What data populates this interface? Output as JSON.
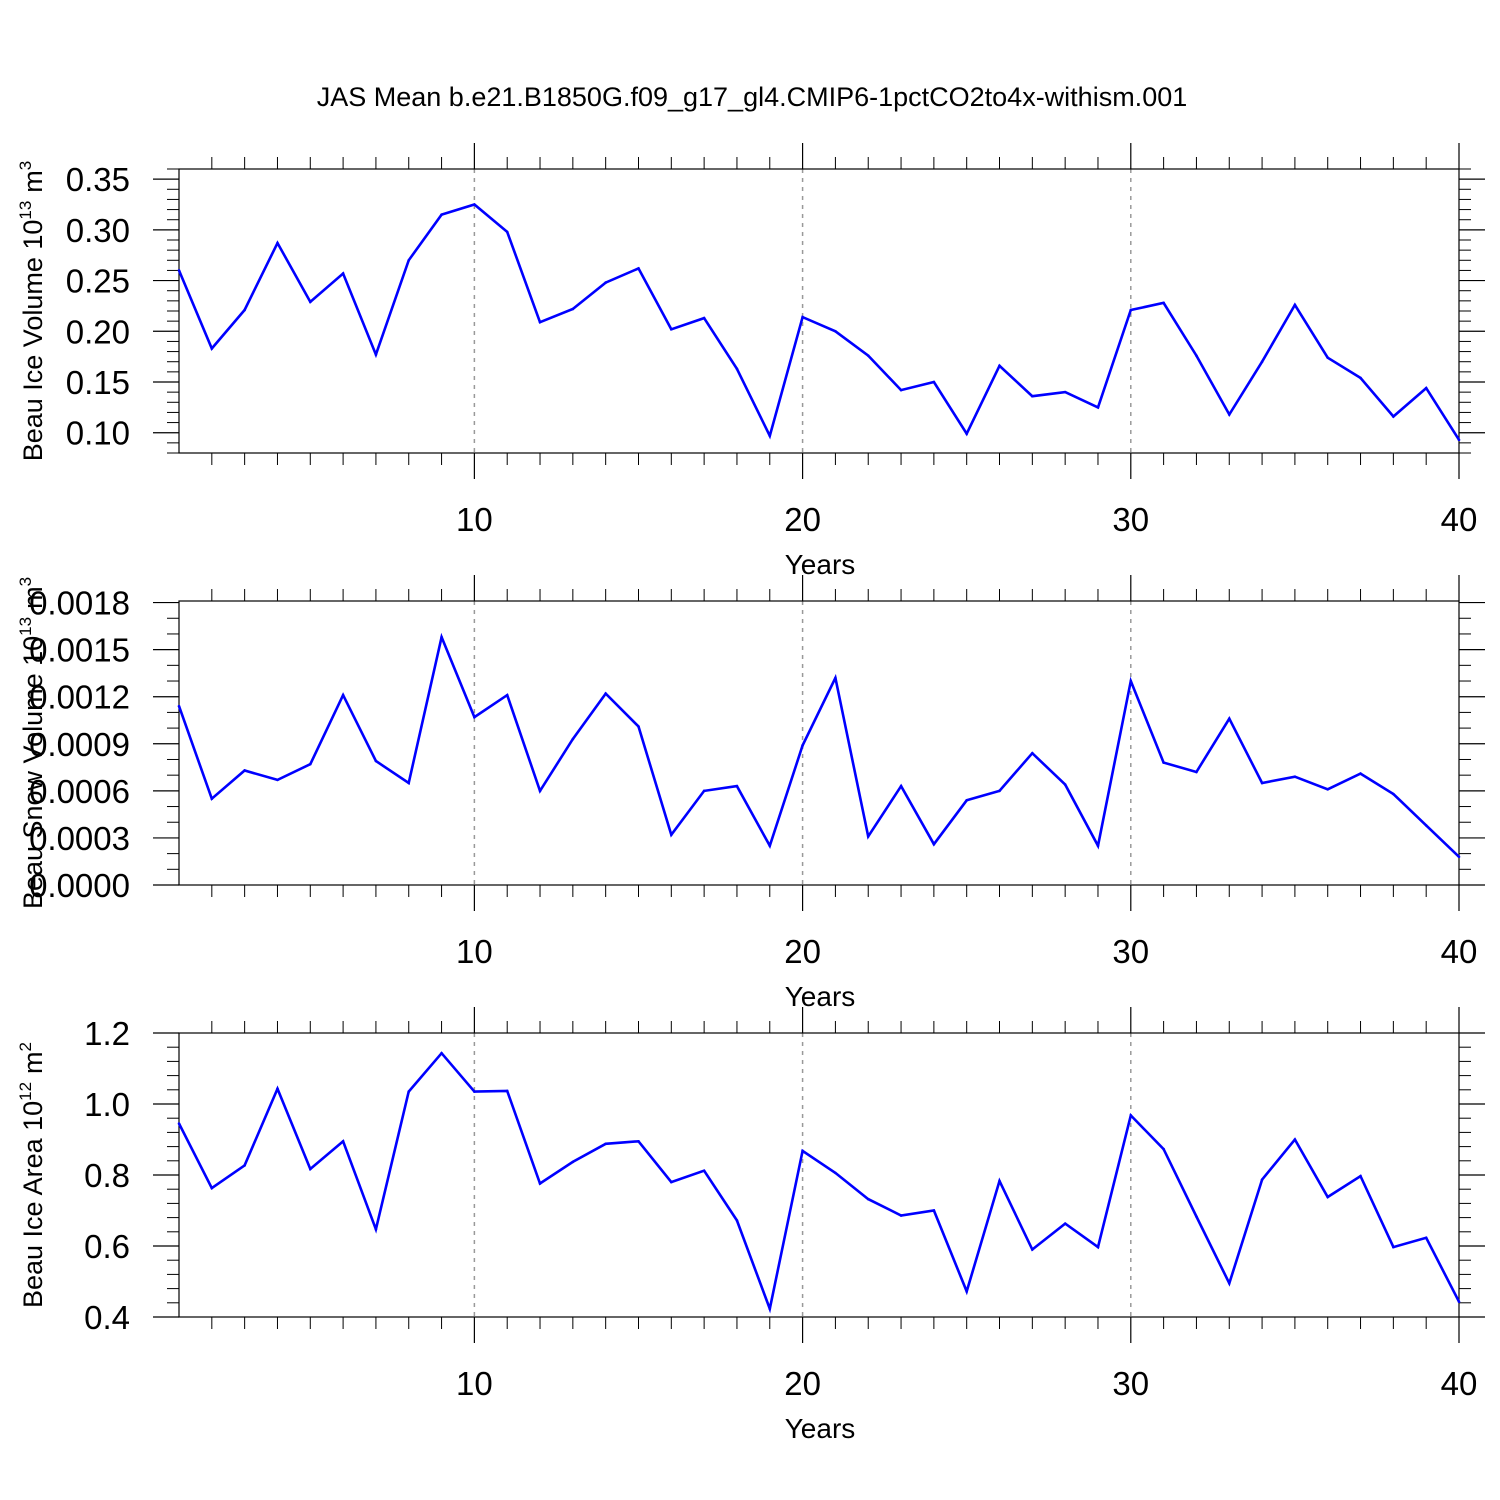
{
  "figure": {
    "title": "JAS Mean b.e21.B1850G.f09_g17_gl4.CMIP6-1pctCO2to4x-withism.001"
  },
  "colors": {
    "line": "#0000ff",
    "axis": "#000000",
    "grid": "#999999"
  },
  "chart_data": [
    {
      "type": "line",
      "id": "volume",
      "ylabel_main": "Beau Ice Volume 10",
      "ylabel_exp": "13",
      "ylabel_unit": "m",
      "ylabel_unit_exp": "3",
      "xlabel": "Years",
      "xlim": [
        1,
        40
      ],
      "ylim": [
        0.08,
        0.36
      ],
      "xticks": [
        "10",
        "20",
        "30",
        "40"
      ],
      "xtick_values": [
        10,
        20,
        30,
        40
      ],
      "yticks": [
        "0.10",
        "0.15",
        "0.20",
        "0.25",
        "0.30",
        "0.35"
      ],
      "ytick_values": [
        0.1,
        0.15,
        0.2,
        0.25,
        0.3,
        0.35
      ],
      "yminor_step": 0.01,
      "x": [
        1,
        2,
        3,
        4,
        5,
        6,
        7,
        8,
        9,
        10,
        11,
        12,
        13,
        14,
        15,
        16,
        17,
        18,
        19,
        20,
        21,
        22,
        23,
        24,
        25,
        26,
        27,
        28,
        29,
        30,
        31,
        32,
        33,
        34,
        35,
        36,
        37,
        38,
        39,
        40
      ],
      "values": [
        0.26,
        0.183,
        0.221,
        0.287,
        0.229,
        0.257,
        0.177,
        0.27,
        0.315,
        0.325,
        0.298,
        0.209,
        0.222,
        0.248,
        0.262,
        0.202,
        0.213,
        0.163,
        0.097,
        0.214,
        0.2,
        0.176,
        0.142,
        0.15,
        0.099,
        0.166,
        0.136,
        0.14,
        0.125,
        0.221,
        0.228,
        0.176,
        0.118,
        0.17,
        0.226,
        0.174,
        0.154,
        0.116,
        0.144,
        0.093
      ]
    },
    {
      "type": "line",
      "id": "snow",
      "ylabel_main": "Beau Snow Volume 10",
      "ylabel_exp": "13",
      "ylabel_unit": "m",
      "ylabel_unit_exp": "3",
      "xlabel": "Years",
      "xlim": [
        1,
        40
      ],
      "ylim": [
        0,
        0.00181
      ],
      "xticks": [
        "10",
        "20",
        "30",
        "40"
      ],
      "xtick_values": [
        10,
        20,
        30,
        40
      ],
      "yticks": [
        "0.0000",
        "0.0003",
        "0.0006",
        "0.0009",
        "0.0012",
        "0.0015",
        "0.0018"
      ],
      "ytick_values": [
        0,
        0.0003,
        0.0006,
        0.0009,
        0.0012,
        0.0015,
        0.0018
      ],
      "yminor_step": 0.0001,
      "x": [
        1,
        2,
        3,
        4,
        5,
        6,
        7,
        8,
        9,
        10,
        11,
        12,
        13,
        14,
        15,
        16,
        17,
        18,
        19,
        20,
        21,
        22,
        23,
        24,
        25,
        26,
        27,
        28,
        29,
        30,
        31,
        32,
        33,
        34,
        35,
        36,
        37,
        38,
        39,
        40
      ],
      "values": [
        0.00114,
        0.00055,
        0.00073,
        0.00067,
        0.00077,
        0.00121,
        0.00079,
        0.00065,
        0.00158,
        0.00107,
        0.00121,
        0.0006,
        0.00093,
        0.00122,
        0.00101,
        0.00032,
        0.0006,
        0.00063,
        0.00025,
        0.00089,
        0.00132,
        0.00031,
        0.00063,
        0.00026,
        0.00054,
        0.0006,
        0.00084,
        0.00064,
        0.00025,
        0.0013,
        0.00078,
        0.00072,
        0.00106,
        0.00065,
        0.00069,
        0.00061,
        0.00071,
        0.00058,
        0.00038,
        0.00018
      ]
    },
    {
      "type": "line",
      "id": "area",
      "ylabel_main": "Beau Ice Area 10",
      "ylabel_exp": "12",
      "ylabel_unit": "m",
      "ylabel_unit_exp": "2",
      "xlabel": "Years",
      "xlim": [
        1,
        40
      ],
      "ylim": [
        0.4,
        1.2
      ],
      "xticks": [
        "10",
        "20",
        "30",
        "40"
      ],
      "xtick_values": [
        10,
        20,
        30,
        40
      ],
      "yticks": [
        "0.4",
        "0.6",
        "0.8",
        "1.0",
        "1.2"
      ],
      "ytick_values": [
        0.4,
        0.6,
        0.8,
        1.0,
        1.2
      ],
      "yminor_step": 0.04,
      "x": [
        1,
        2,
        3,
        4,
        5,
        6,
        7,
        8,
        9,
        10,
        11,
        12,
        13,
        14,
        15,
        16,
        17,
        18,
        19,
        20,
        21,
        22,
        23,
        24,
        25,
        26,
        27,
        28,
        29,
        30,
        31,
        32,
        33,
        34,
        35,
        36,
        37,
        38,
        39,
        40
      ],
      "values": [
        0.945,
        0.763,
        0.827,
        1.043,
        0.817,
        0.895,
        0.647,
        1.035,
        1.143,
        1.035,
        1.037,
        0.776,
        0.837,
        0.888,
        0.895,
        0.78,
        0.812,
        0.672,
        0.423,
        0.868,
        0.806,
        0.732,
        0.686,
        0.7,
        0.472,
        0.783,
        0.59,
        0.663,
        0.597,
        0.968,
        0.873,
        0.683,
        0.495,
        0.787,
        0.9,
        0.738,
        0.797,
        0.597,
        0.623,
        0.443
      ]
    }
  ]
}
